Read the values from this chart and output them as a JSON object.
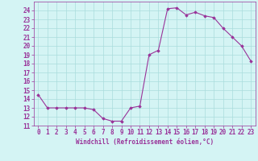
{
  "x": [
    0,
    1,
    2,
    3,
    4,
    5,
    6,
    7,
    8,
    9,
    10,
    11,
    12,
    13,
    14,
    15,
    16,
    17,
    18,
    19,
    20,
    21,
    22,
    23
  ],
  "y": [
    14.5,
    13.0,
    13.0,
    13.0,
    13.0,
    13.0,
    12.8,
    11.8,
    11.5,
    11.5,
    13.0,
    13.2,
    19.0,
    19.5,
    24.2,
    24.3,
    23.5,
    23.8,
    23.4,
    23.2,
    22.0,
    21.0,
    20.0,
    18.3
  ],
  "xlim": [
    -0.5,
    23.5
  ],
  "ylim": [
    11,
    25
  ],
  "yticks": [
    11,
    12,
    13,
    14,
    15,
    16,
    17,
    18,
    19,
    20,
    21,
    22,
    23,
    24
  ],
  "xticks": [
    0,
    1,
    2,
    3,
    4,
    5,
    6,
    7,
    8,
    9,
    10,
    11,
    12,
    13,
    14,
    15,
    16,
    17,
    18,
    19,
    20,
    21,
    22,
    23
  ],
  "xlabel": "Windchill (Refroidissement éolien,°C)",
  "line_color": "#993399",
  "marker": "D",
  "marker_size": 1.8,
  "bg_color": "#d4f4f4",
  "grid_color": "#aadddd",
  "linewidth": 0.8,
  "tick_fontsize": 5.5,
  "xlabel_fontsize": 5.5
}
